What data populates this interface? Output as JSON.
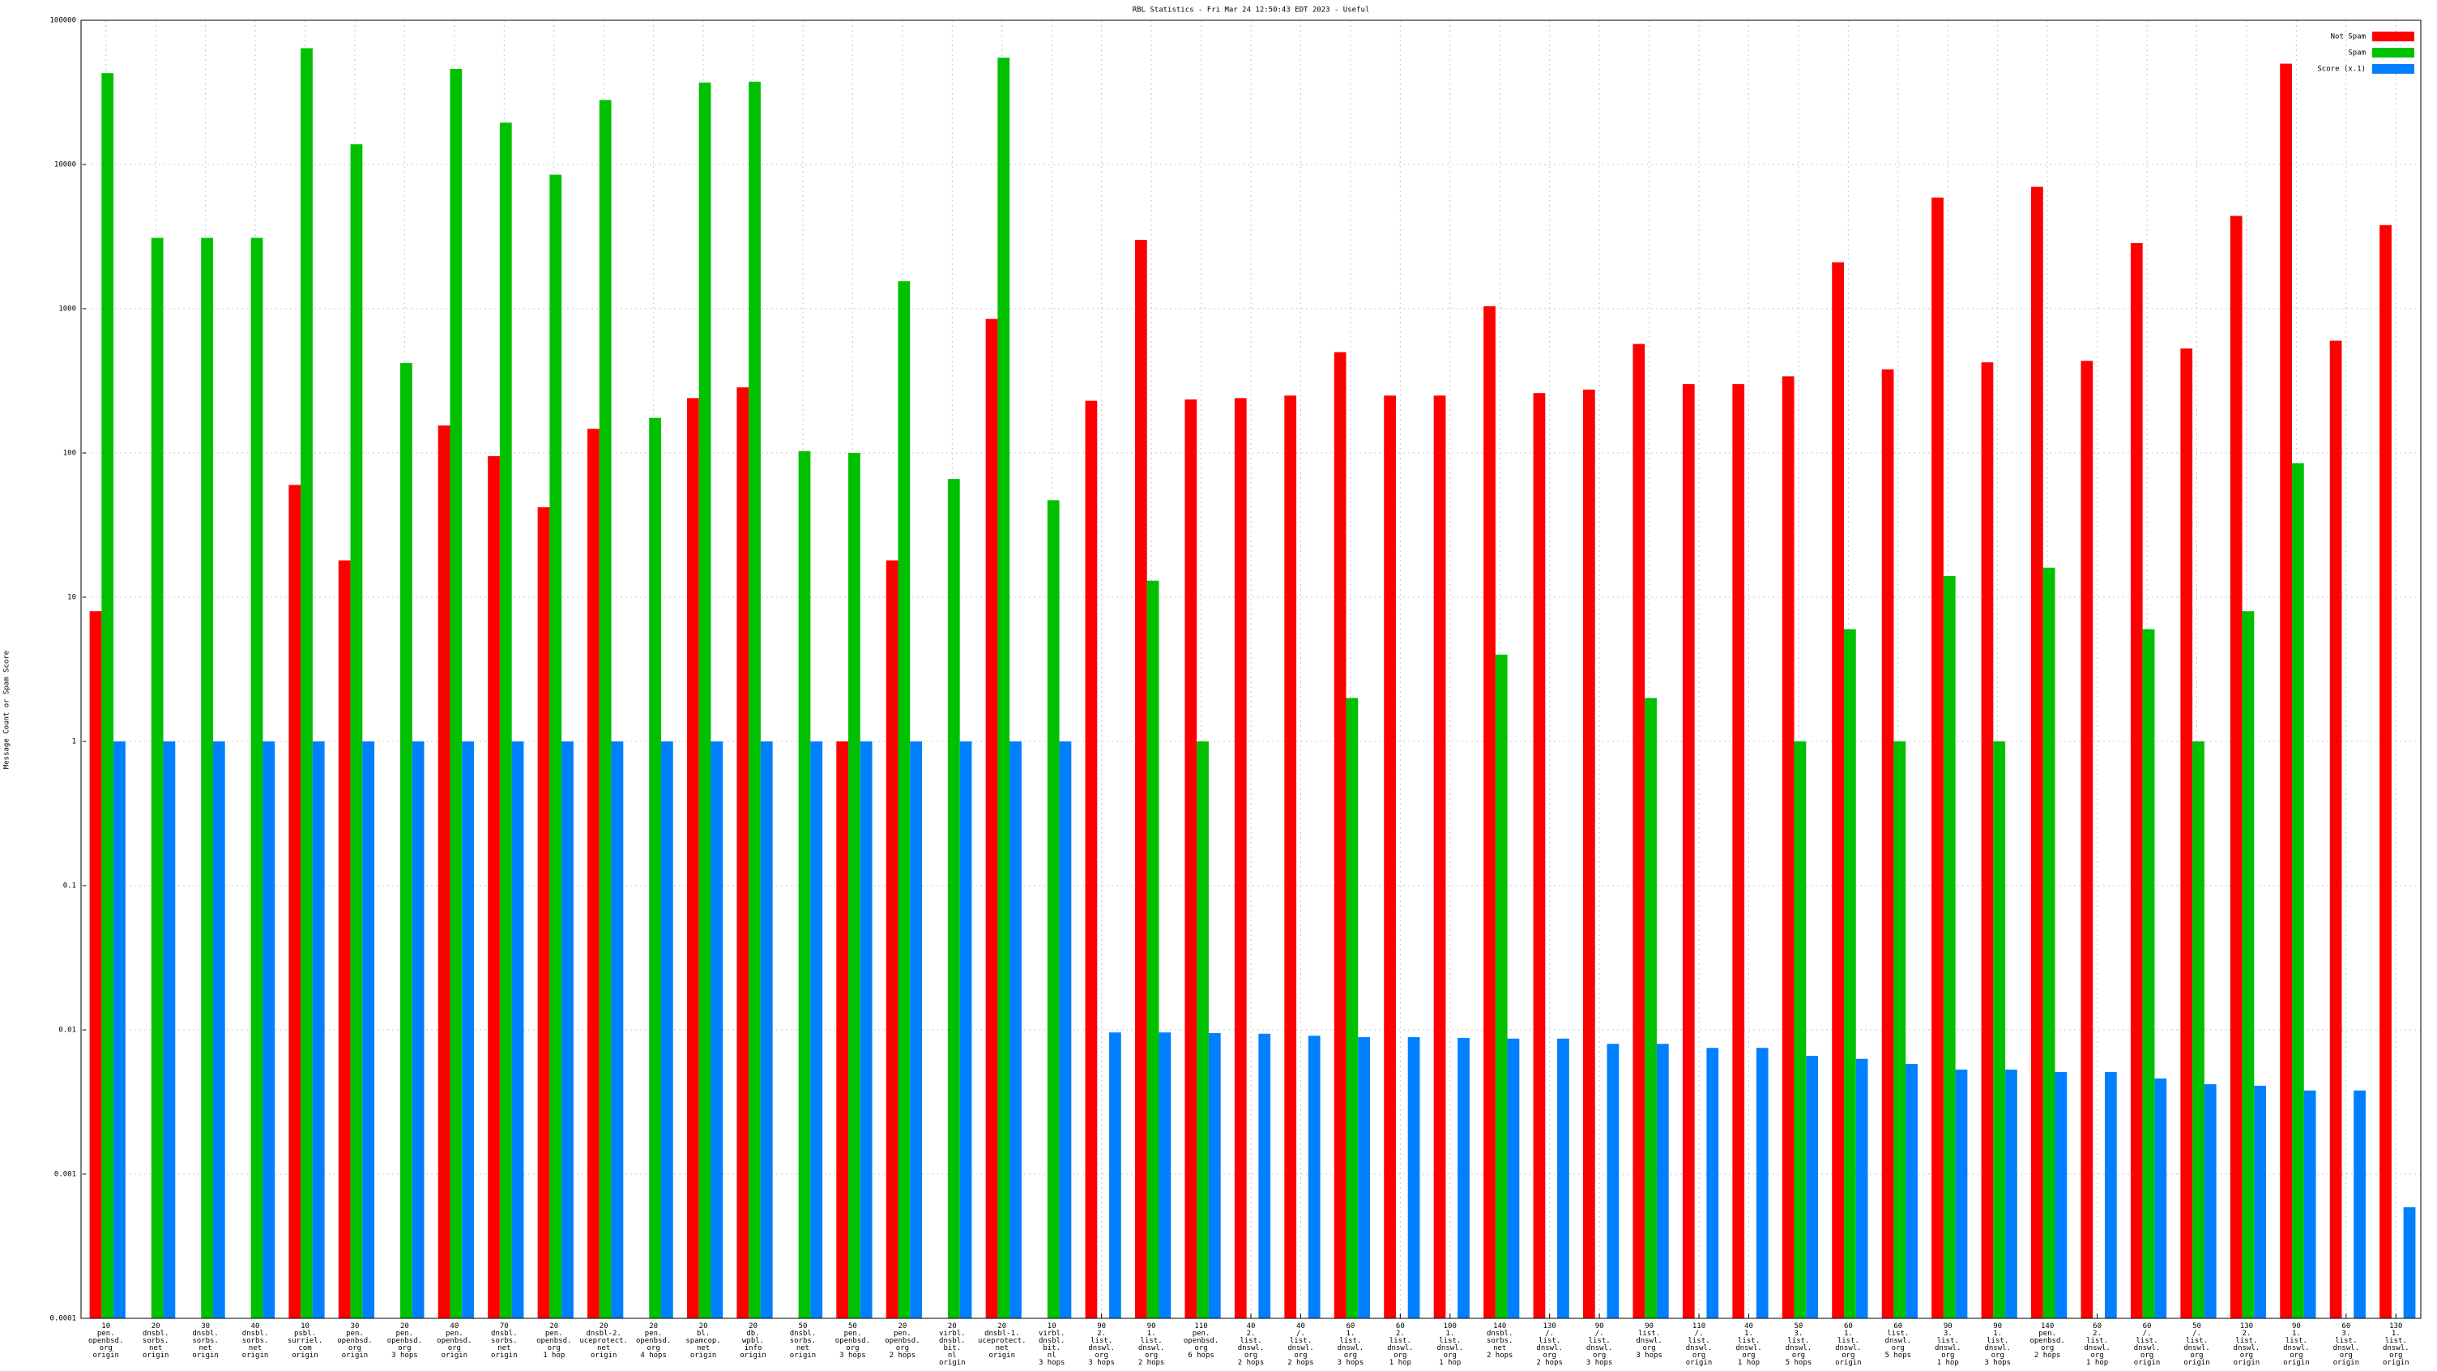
{
  "chart_data": {
    "type": "bar",
    "title": "RBL Statistics - Fri Mar 24 12:50:43 EDT 2023 - Useful",
    "y_label": "Message Count or Spam Score",
    "log_scale": true,
    "grid": true,
    "legend": "top-right",
    "ylim": [
      0.0001,
      100000
    ],
    "yticks": [
      0.0001,
      0.001,
      0.01,
      0.1,
      1,
      10,
      100,
      1000,
      10000,
      100000
    ],
    "categories": [
      "10\npen.\nopenbsd.\norg\norigin",
      "20\ndnsbl.\nsorbs.\nnet\norigin",
      "30\ndnsbl.\nsorbs.\nnet\norigin",
      "40\ndnsbl.\nsorbs.\nnet\norigin",
      "10\npsbl.\nsurriel.\ncom\norigin",
      "30\npen.\nopenbsd.\norg\norigin",
      "20\npen.\nopenbsd.\norg\n3 hops",
      "40\npen.\nopenbsd.\norg\norigin",
      "70\ndnsbl.\nsorbs.\nnet\norigin",
      "20\npen.\nopenbsd.\norg\n1 hop",
      "20\ndnsbl-2.\nuceprotect.\nnet\norigin",
      "20\npen.\nopenbsd.\norg\n4 hops",
      "20\nbl.\nspamcop.\nnet\norigin",
      "20\ndb.\nwpbl.\ninfo\norigin",
      "50\ndnsbl.\nsorbs.\nnet\norigin",
      "50\npen.\nopenbsd.\norg\n3 hops",
      "20\npen.\nopenbsd.\norg\n2 hops",
      "20\nvirbl.\ndnsbl.\nbit.\nnl\norigin",
      "20\ndnsbl-1.\nuceprotect.\nnet\norigin",
      "10\nvirbl.\ndnsbl.\nbit.\nnl\n3 hops",
      "90\n2.\nlist.\ndnswl.\norg\n3 hops",
      "90\n1.\nlist.\ndnswl.\norg\n2 hops",
      "110\npen.\nopenbsd.\norg\n6 hops",
      "40\n2.\nlist.\ndnswl.\norg\n2 hops",
      "40\n/.\nlist.\ndnswl.\norg\n2 hops",
      "60\n1.\nlist.\ndnswl.\norg\n3 hops",
      "60\n2.\nlist.\ndnswl.\norg\n1 hop",
      "100\n1.\nlist.\ndnswl.\norg\n1 hop",
      "140\ndnsbl.\nsorbs.\nnet\n2 hops",
      "130\n/.\nlist.\ndnswl.\norg\n2 hops",
      "90\n/.\nlist.\ndnswl.\norg\n3 hops",
      "90\nlist.\ndnswl.\norg\n3 hops",
      "110\n/.\nlist.\ndnswl.\norg\norigin",
      "40\n1.\nlist.\ndnswl.\norg\n1 hop",
      "50\n3.\nlist.\ndnswl.\norg\n5 hops",
      "60\n1.\nlist.\ndnswl.\norg\norigin",
      "60\nlist.\ndnswl.\norg\n5 hops",
      "90\n3.\nlist.\ndnswl.\norg\n1 hop",
      "90\n1.\nlist.\ndnswl.\norg\n3 hops",
      "140\npen.\nopenbsd.\norg\n2 hops",
      "60\n2.\nlist.\ndnswl.\norg\n1 hop",
      "60\n/.\nlist.\ndnswl.\norg\norigin",
      "50\n/.\nlist.\ndnswl.\norg\norigin",
      "130\n2.\nlist.\ndnswl.\norg\norigin",
      "90\n1.\nlist.\ndnswl.\norg\norigin",
      "60\n3.\nlist.\ndnswl.\norg\norigin",
      "130\n1.\nlist.\ndnswl.\norg\norigin"
    ],
    "series": [
      {
        "name": "Not Spam",
        "color": "#ff0000",
        "values": [
          8,
          null,
          null,
          null,
          60,
          18,
          null,
          155,
          95,
          42,
          147,
          null,
          240,
          285,
          null,
          1,
          18,
          null,
          850,
          null,
          230,
          3000,
          235,
          240,
          250,
          500,
          250,
          250,
          1040,
          260,
          275,
          570,
          300,
          300,
          340,
          2100,
          380,
          5900,
          425,
          7000,
          435,
          2850,
          530,
          4400,
          50000,
          600,
          3800
        ]
      },
      {
        "name": "Spam",
        "color": "#00c000",
        "values": [
          43000,
          3100,
          3100,
          3100,
          64000,
          13800,
          420,
          46000,
          19500,
          8500,
          28000,
          175,
          37000,
          37500,
          103,
          100,
          1550,
          66,
          55000,
          47,
          null,
          13,
          1,
          null,
          null,
          2,
          null,
          null,
          4,
          null,
          null,
          2,
          null,
          null,
          1,
          6,
          1,
          14,
          1,
          16,
          null,
          6,
          1,
          8,
          85,
          null,
          null
        ]
      },
      {
        "name": "Score (x.1)",
        "color": "#0080ff",
        "values": [
          1,
          1,
          1,
          1,
          1,
          1,
          1,
          1,
          1,
          1,
          1,
          1,
          1,
          1,
          1,
          1,
          1,
          1,
          1,
          1,
          0.0096,
          0.0096,
          0.0095,
          0.0094,
          0.0091,
          0.0089,
          0.0089,
          0.0088,
          0.0087,
          0.0087,
          0.008,
          0.008,
          0.0075,
          0.0075,
          0.0066,
          0.0063,
          0.0058,
          0.0053,
          0.0053,
          0.0051,
          0.0051,
          0.0046,
          0.0042,
          0.0041,
          0.0038,
          0.0038,
          0.00059
        ]
      }
    ]
  }
}
